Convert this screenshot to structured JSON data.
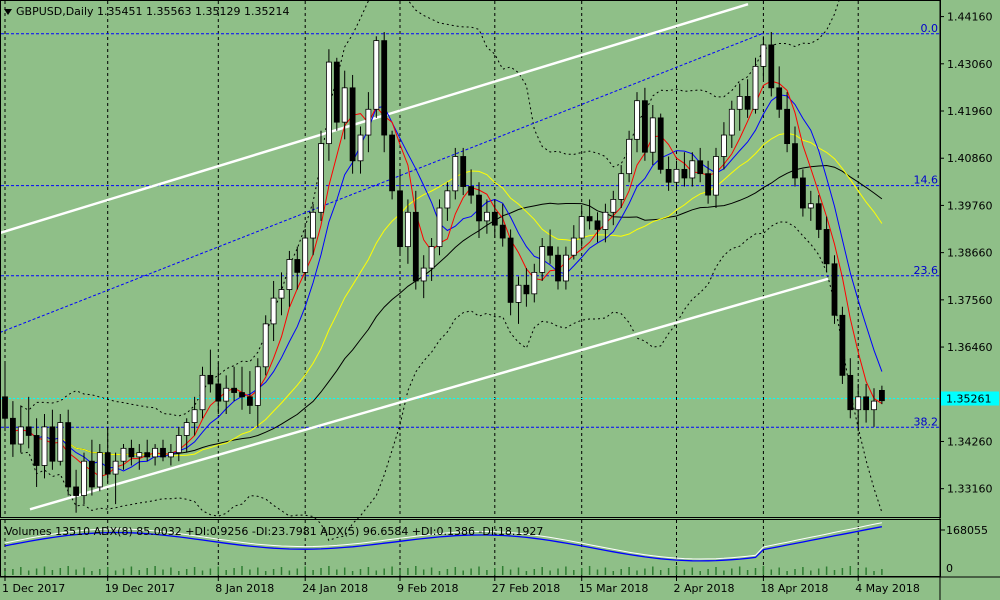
{
  "header": {
    "title": "GBPUSD,Daily  1.35451 1.35563 1.35129 1.35214",
    "menu_icon": "triangle-down-icon"
  },
  "indicator": {
    "text": "Volumes 13510  ADX(8) 85.0032 +DI:0.9256 -DI:23.7981  ADX(5) 96.6584 +DI:0.1386 -DI:18.1927",
    "axis_top": "168055",
    "axis_zero": "0"
  },
  "colors": {
    "background": "#8fbf88",
    "grid": "#000000",
    "bull": "#ffffff",
    "bear": "#000000",
    "ma_red": "#ff0000",
    "ma_blue": "#0000ff",
    "ma_yellow": "#ffff00",
    "ma_black": "#000000",
    "fib": "#0000ff",
    "current_price": "#00ffff"
  },
  "chart_data": {
    "type": "candlestick",
    "symbol": "GBPUSD",
    "timeframe": "Daily",
    "ylim": [
      1.325,
      1.445
    ],
    "y_ticks": [
      "1.44160",
      "1.43060",
      "1.41960",
      "1.40860",
      "1.39760",
      "1.38660",
      "1.37560",
      "1.36460",
      "1.35261",
      "1.34260",
      "1.33160"
    ],
    "x_ticks": [
      "1 Dec 2017",
      "19 Dec 2017",
      "8 Jan 2018",
      "24 Jan 2018",
      "9 Feb 2018",
      "27 Feb 2018",
      "15 Mar 2018",
      "2 Apr 2018",
      "18 Apr 2018",
      "4 May 2018"
    ],
    "fib_levels": [
      {
        "label": "0.0",
        "price": 1.4376
      },
      {
        "label": "14.6",
        "price": 1.4022
      },
      {
        "label": "23.6",
        "price": 1.3812
      },
      {
        "label": "38.2",
        "price": 1.3459
      }
    ],
    "current_price": {
      "label": "1.35261",
      "price": 1.35261
    },
    "candles": [
      [
        1.353,
        1.361,
        1.345,
        1.348
      ],
      [
        1.348,
        1.352,
        1.339,
        1.342
      ],
      [
        1.342,
        1.351,
        1.34,
        1.346
      ],
      [
        1.346,
        1.353,
        1.341,
        1.344
      ],
      [
        1.344,
        1.348,
        1.332,
        1.337
      ],
      [
        1.337,
        1.349,
        1.334,
        1.346
      ],
      [
        1.346,
        1.35,
        1.336,
        1.338
      ],
      [
        1.338,
        1.349,
        1.337,
        1.347
      ],
      [
        1.347,
        1.35,
        1.33,
        1.332
      ],
      [
        1.332,
        1.336,
        1.326,
        1.33
      ],
      [
        1.33,
        1.34,
        1.328,
        1.338
      ],
      [
        1.338,
        1.343,
        1.33,
        1.332
      ],
      [
        1.332,
        1.342,
        1.331,
        1.34
      ],
      [
        1.34,
        1.346,
        1.333,
        1.335
      ],
      [
        1.335,
        1.34,
        1.328,
        1.338
      ],
      [
        1.338,
        1.342,
        1.336,
        1.341
      ],
      [
        1.341,
        1.343,
        1.337,
        1.339
      ],
      [
        1.339,
        1.342,
        1.336,
        1.34
      ],
      [
        1.34,
        1.343,
        1.338,
        1.339
      ],
      [
        1.339,
        1.342,
        1.337,
        1.341
      ],
      [
        1.341,
        1.343,
        1.338,
        1.339
      ],
      [
        1.339,
        1.342,
        1.337,
        1.34
      ],
      [
        1.34,
        1.346,
        1.338,
        1.344
      ],
      [
        1.344,
        1.348,
        1.34,
        1.347
      ],
      [
        1.347,
        1.353,
        1.344,
        1.35
      ],
      [
        1.35,
        1.36,
        1.348,
        1.358
      ],
      [
        1.358,
        1.364,
        1.354,
        1.356
      ],
      [
        1.356,
        1.361,
        1.349,
        1.352
      ],
      [
        1.352,
        1.358,
        1.349,
        1.355
      ],
      [
        1.355,
        1.36,
        1.352,
        1.354
      ],
      [
        1.354,
        1.36,
        1.35,
        1.353
      ],
      [
        1.353,
        1.359,
        1.349,
        1.351
      ],
      [
        1.351,
        1.362,
        1.346,
        1.36
      ],
      [
        1.36,
        1.372,
        1.358,
        1.37
      ],
      [
        1.37,
        1.38,
        1.366,
        1.376
      ],
      [
        1.376,
        1.382,
        1.372,
        1.378
      ],
      [
        1.378,
        1.387,
        1.374,
        1.385
      ],
      [
        1.385,
        1.388,
        1.378,
        1.382
      ],
      [
        1.382,
        1.392,
        1.38,
        1.39
      ],
      [
        1.39,
        1.398,
        1.386,
        1.396
      ],
      [
        1.396,
        1.415,
        1.394,
        1.412
      ],
      [
        1.412,
        1.434,
        1.408,
        1.431
      ],
      [
        1.431,
        1.432,
        1.415,
        1.417
      ],
      [
        1.417,
        1.429,
        1.413,
        1.425
      ],
      [
        1.425,
        1.428,
        1.405,
        1.408
      ],
      [
        1.408,
        1.416,
        1.405,
        1.414
      ],
      [
        1.414,
        1.424,
        1.41,
        1.42
      ],
      [
        1.42,
        1.437,
        1.418,
        1.436
      ],
      [
        1.436,
        1.438,
        1.41,
        1.414
      ],
      [
        1.414,
        1.415,
        1.399,
        1.401
      ],
      [
        1.401,
        1.406,
        1.386,
        1.388
      ],
      [
        1.388,
        1.399,
        1.384,
        1.396
      ],
      [
        1.396,
        1.401,
        1.378,
        1.38
      ],
      [
        1.38,
        1.386,
        1.376,
        1.383
      ],
      [
        1.383,
        1.39,
        1.38,
        1.388
      ],
      [
        1.388,
        1.399,
        1.386,
        1.397
      ],
      [
        1.397,
        1.403,
        1.394,
        1.401
      ],
      [
        1.401,
        1.411,
        1.399,
        1.409
      ],
      [
        1.409,
        1.411,
        1.4,
        1.402
      ],
      [
        1.402,
        1.406,
        1.398,
        1.4
      ],
      [
        1.4,
        1.403,
        1.39,
        1.394
      ],
      [
        1.394,
        1.399,
        1.391,
        1.396
      ],
      [
        1.396,
        1.399,
        1.39,
        1.393
      ],
      [
        1.393,
        1.398,
        1.388,
        1.39
      ],
      [
        1.39,
        1.392,
        1.372,
        1.375
      ],
      [
        1.375,
        1.381,
        1.37,
        1.379
      ],
      [
        1.379,
        1.383,
        1.374,
        1.377
      ],
      [
        1.377,
        1.384,
        1.375,
        1.382
      ],
      [
        1.382,
        1.39,
        1.38,
        1.388
      ],
      [
        1.388,
        1.392,
        1.384,
        1.386
      ],
      [
        1.386,
        1.388,
        1.378,
        1.38
      ],
      [
        1.38,
        1.388,
        1.378,
        1.386
      ],
      [
        1.386,
        1.393,
        1.385,
        1.39
      ],
      [
        1.39,
        1.397,
        1.388,
        1.395
      ],
      [
        1.395,
        1.399,
        1.392,
        1.394
      ],
      [
        1.394,
        1.396,
        1.389,
        1.392
      ],
      [
        1.392,
        1.398,
        1.389,
        1.396
      ],
      [
        1.396,
        1.401,
        1.393,
        1.399
      ],
      [
        1.399,
        1.407,
        1.397,
        1.405
      ],
      [
        1.405,
        1.415,
        1.403,
        1.413
      ],
      [
        1.413,
        1.424,
        1.41,
        1.422
      ],
      [
        1.422,
        1.425,
        1.408,
        1.41
      ],
      [
        1.41,
        1.421,
        1.407,
        1.418
      ],
      [
        1.418,
        1.419,
        1.405,
        1.406
      ],
      [
        1.406,
        1.409,
        1.401,
        1.403
      ],
      [
        1.403,
        1.408,
        1.401,
        1.406
      ],
      [
        1.406,
        1.41,
        1.402,
        1.404
      ],
      [
        1.404,
        1.41,
        1.402,
        1.408
      ],
      [
        1.408,
        1.411,
        1.403,
        1.405
      ],
      [
        1.405,
        1.408,
        1.398,
        1.4
      ],
      [
        1.4,
        1.411,
        1.397,
        1.409
      ],
      [
        1.409,
        1.417,
        1.406,
        1.414
      ],
      [
        1.414,
        1.422,
        1.411,
        1.42
      ],
      [
        1.42,
        1.426,
        1.415,
        1.423
      ],
      [
        1.423,
        1.427,
        1.418,
        1.42
      ],
      [
        1.42,
        1.432,
        1.419,
        1.43
      ],
      [
        1.43,
        1.437,
        1.427,
        1.435
      ],
      [
        1.435,
        1.438,
        1.423,
        1.425
      ],
      [
        1.425,
        1.43,
        1.418,
        1.42
      ],
      [
        1.42,
        1.424,
        1.41,
        1.412
      ],
      [
        1.412,
        1.416,
        1.402,
        1.404
      ],
      [
        1.404,
        1.406,
        1.395,
        1.397
      ],
      [
        1.397,
        1.401,
        1.394,
        1.398
      ],
      [
        1.398,
        1.4,
        1.39,
        1.392
      ],
      [
        1.392,
        1.395,
        1.382,
        1.384
      ],
      [
        1.384,
        1.386,
        1.37,
        1.372
      ],
      [
        1.372,
        1.374,
        1.356,
        1.358
      ],
      [
        1.358,
        1.362,
        1.348,
        1.35
      ],
      [
        1.35,
        1.356,
        1.345,
        1.353
      ],
      [
        1.353,
        1.356,
        1.347,
        1.35
      ],
      [
        1.35,
        1.355,
        1.346,
        1.352
      ],
      [
        1.3545,
        1.3556,
        1.3513,
        1.3521
      ]
    ]
  }
}
